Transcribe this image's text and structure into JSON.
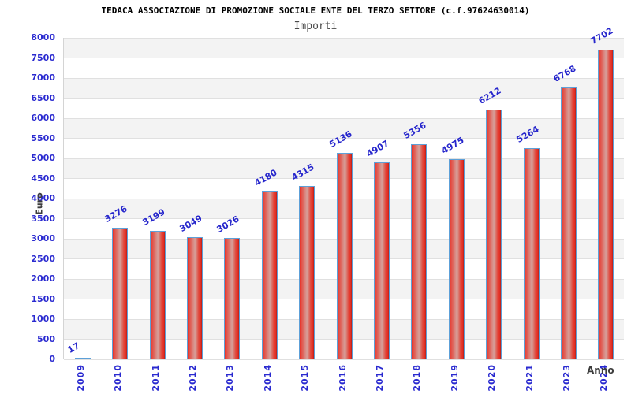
{
  "header": {
    "title": "TEDACA ASSOCIAZIONE DI PROMOZIONE SOCIALE ENTE DEL TERZO SETTORE (c.f.97624630014)",
    "subtitle": "Importi"
  },
  "chart_data": {
    "type": "bar",
    "title": "Importi",
    "xlabel": "Anno",
    "ylabel": "Euro",
    "categories": [
      "2009",
      "2010",
      "2011",
      "2012",
      "2013",
      "2014",
      "2015",
      "2016",
      "2017",
      "2018",
      "2019",
      "2020",
      "2021",
      "2023",
      "2024"
    ],
    "values": [
      17,
      3276,
      3199,
      3049,
      3026,
      4180,
      4315,
      5136,
      4907,
      5356,
      4975,
      6212,
      5264,
      6768,
      7702
    ],
    "ylim": [
      0,
      8000
    ],
    "ytick_step": 500,
    "yticks": [
      "0",
      "500",
      "1000",
      "1500",
      "2000",
      "2500",
      "3000",
      "3500",
      "4000",
      "4500",
      "5000",
      "5500",
      "6000",
      "6500",
      "7000",
      "7500",
      "8000"
    ],
    "grid": "horizontal-bands",
    "legend_position": "none",
    "colors": {
      "bar_fill_edge": "#e8342a",
      "bar_fill_center": "#d79a94",
      "bar_border": "#5da0d8",
      "tick_text": "#2a2ad0",
      "value_label_text": "#2626cc",
      "band_gray": "#f3f3f3",
      "gridline": "#e0e0e0",
      "title_text": "#000000",
      "subtitle_text": "#4a4a4a",
      "axis_title_text": "#3c3c3c"
    }
  }
}
